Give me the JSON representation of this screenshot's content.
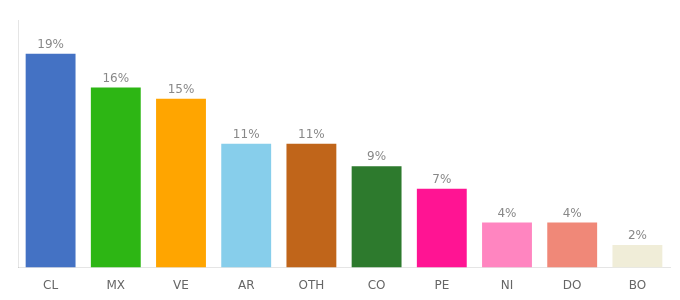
{
  "chart_data": {
    "type": "bar",
    "categories": [
      "CL",
      "MX",
      "VE",
      "AR",
      "OTH",
      "CO",
      "PE",
      "NI",
      "DO",
      "BO"
    ],
    "values": [
      19,
      16,
      15,
      11,
      11,
      9,
      7,
      4,
      4,
      2
    ],
    "value_labels": [
      "19%",
      "16%",
      "15%",
      "11%",
      "11%",
      "9%",
      "7%",
      "4%",
      "4%",
      "2%"
    ],
    "colors": [
      "#4472C4",
      "#2DB614",
      "#FFA500",
      "#87CEEB",
      "#C0651A",
      "#2D7A2D",
      "#FF1493",
      "#FF85C0",
      "#F08878",
      "#F0EDD8"
    ],
    "ylim": [
      0,
      22
    ],
    "data_labels": true,
    "tick_labels": "x",
    "grid": false
  }
}
